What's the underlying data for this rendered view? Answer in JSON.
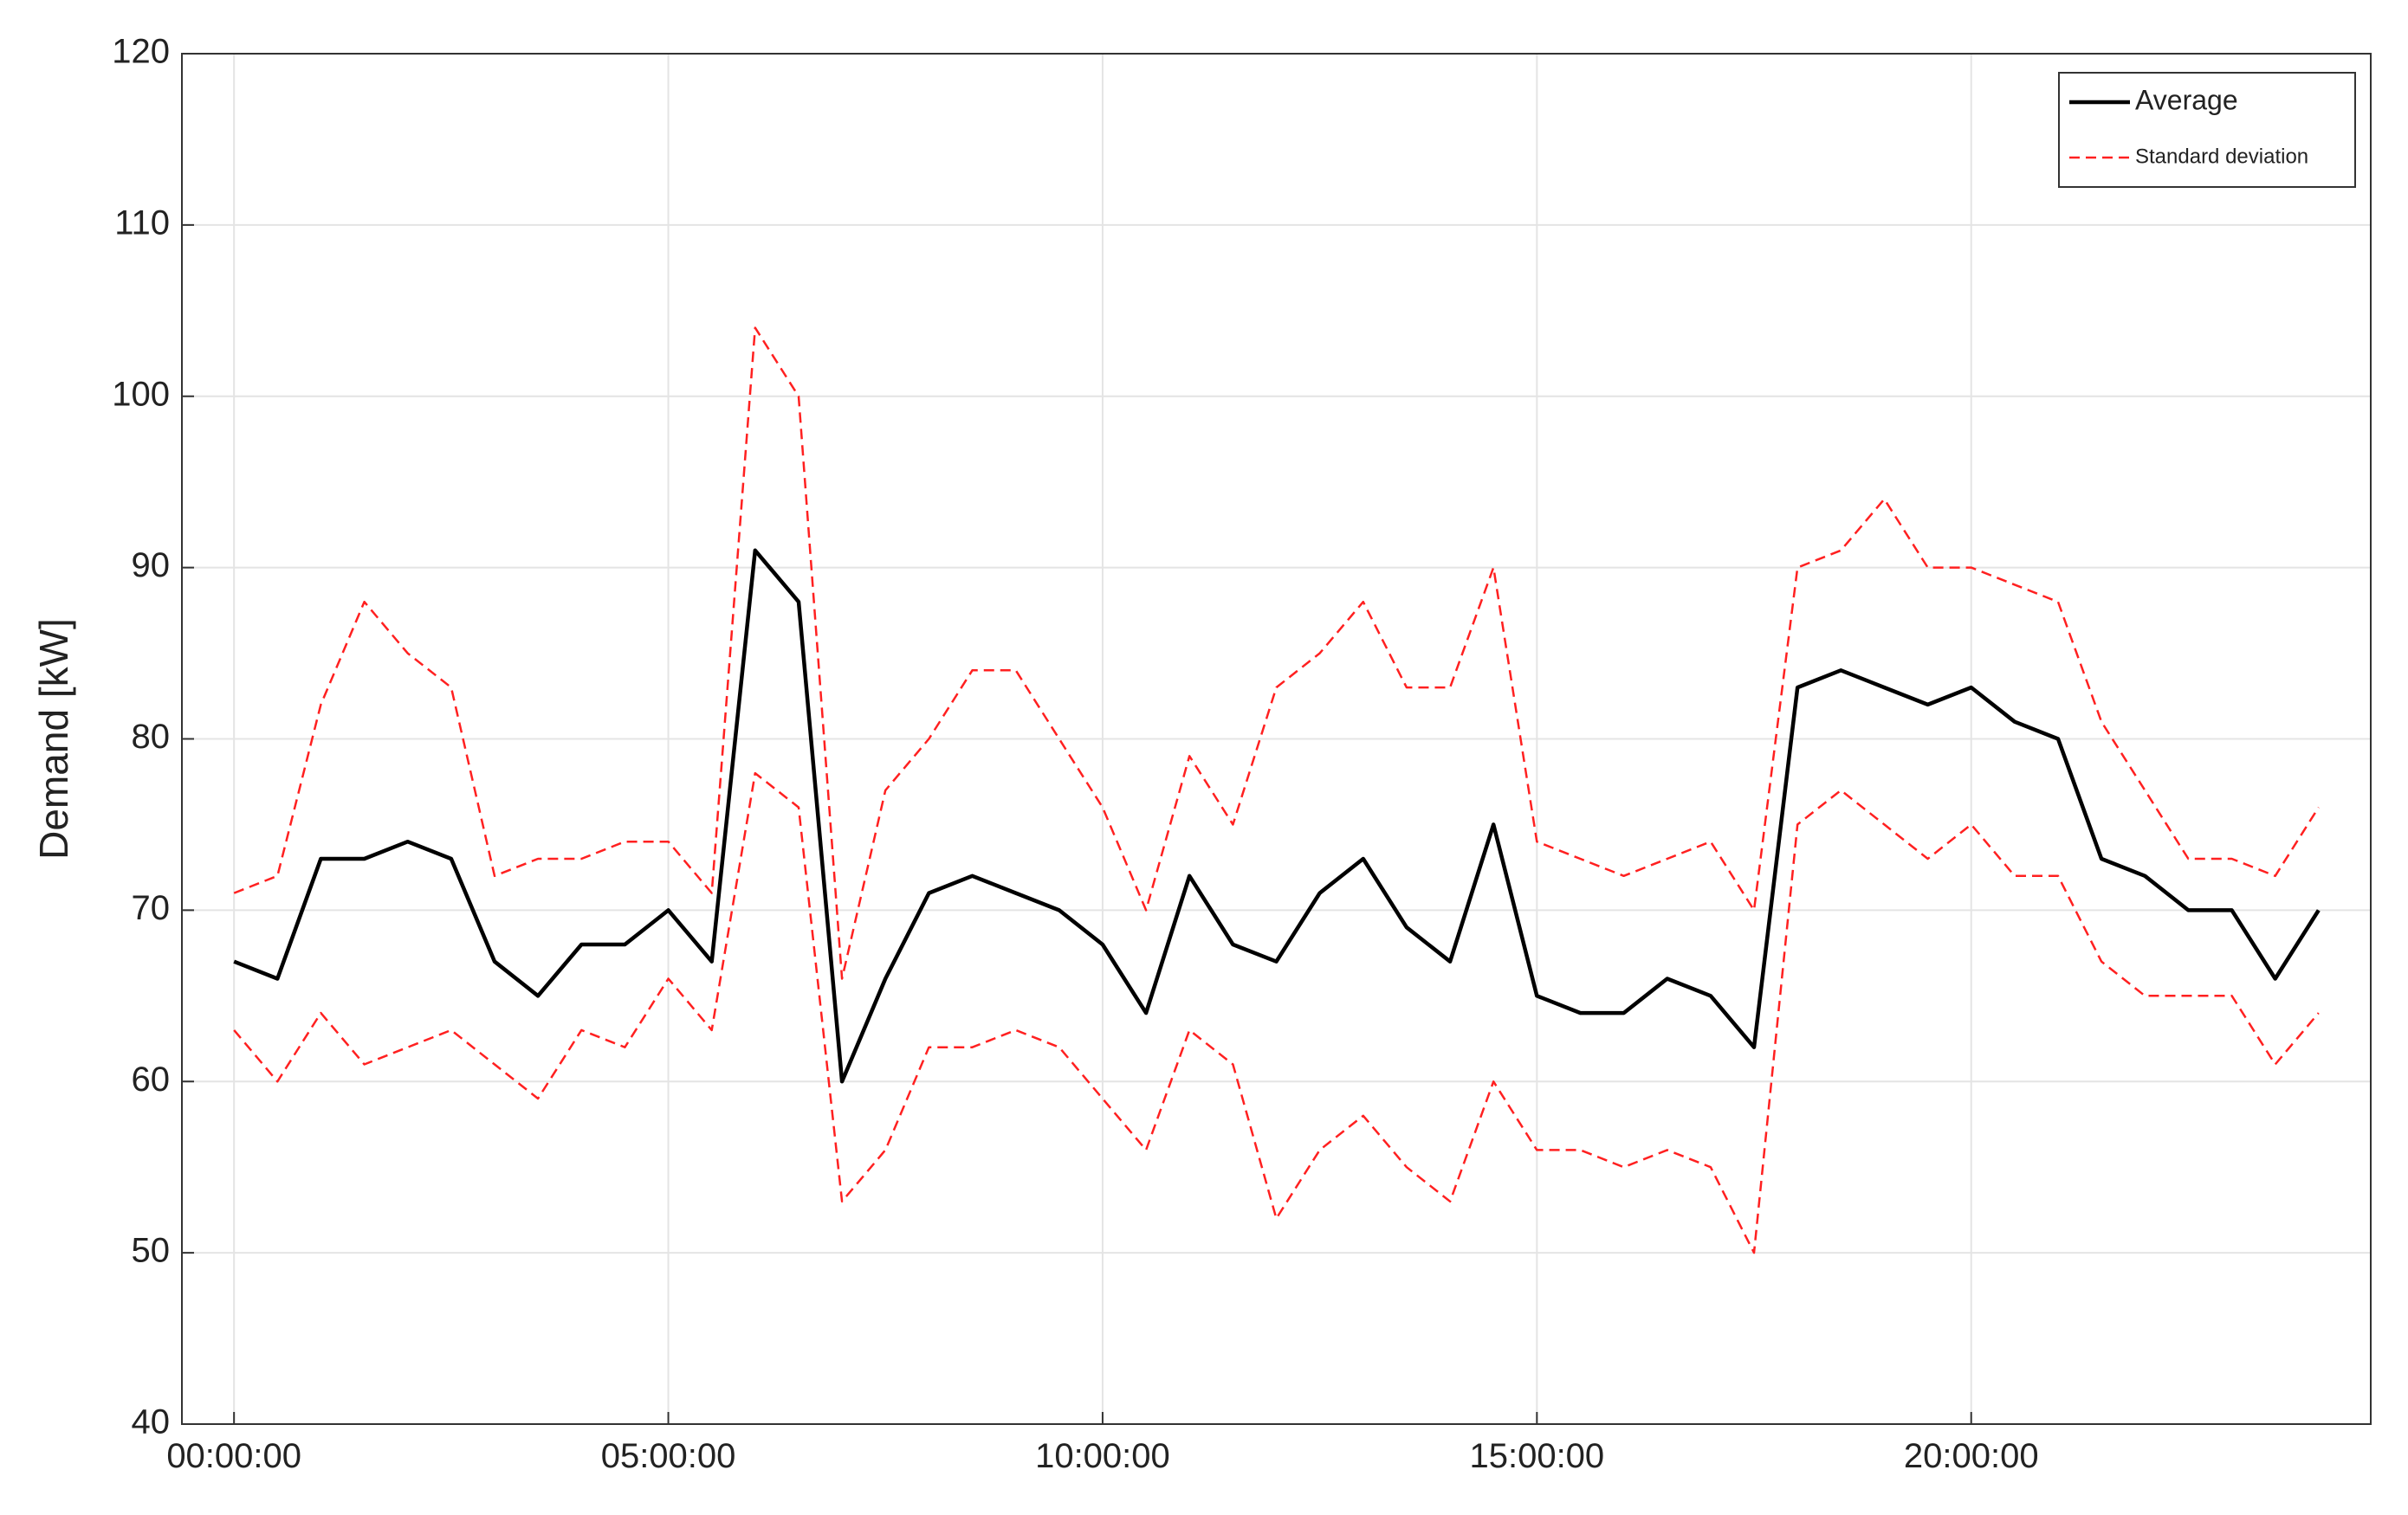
{
  "chart_data": {
    "type": "line",
    "y_label": "Demand [kW]",
    "x": [
      0,
      0.5,
      1,
      1.5,
      2,
      2.5,
      3,
      3.5,
      4,
      4.5,
      5,
      5.5,
      6,
      6.5,
      7,
      7.5,
      8,
      8.5,
      9,
      9.5,
      10,
      10.5,
      11,
      11.5,
      12,
      12.5,
      13,
      13.5,
      14,
      14.5,
      15,
      15.5,
      16,
      16.5,
      17,
      17.5,
      18,
      18.5,
      19,
      19.5,
      20,
      20.5,
      21,
      21.5,
      22,
      22.5,
      23,
      23.5,
      24
    ],
    "series": [
      {
        "name": "Average",
        "color": "#000000",
        "dash": false,
        "values": [
          67,
          66,
          73,
          73,
          74,
          73,
          67,
          65,
          68,
          68,
          70,
          67,
          91,
          88,
          60,
          66,
          71,
          72,
          71,
          70,
          68,
          64,
          72,
          68,
          67,
          71,
          73,
          69,
          67,
          75,
          65,
          64,
          64,
          66,
          65,
          62,
          83,
          84,
          83,
          82,
          83,
          81,
          80,
          73,
          72,
          70,
          70,
          66,
          70
        ]
      },
      {
        "name": "Standard deviation",
        "color": "#ff2020",
        "dash": true,
        "upper": [
          71,
          72,
          82,
          88,
          85,
          83,
          72,
          73,
          73,
          74,
          74,
          71,
          104,
          100,
          66,
          77,
          80,
          84,
          84,
          80,
          76,
          70,
          79,
          75,
          83,
          85,
          88,
          83,
          83,
          90,
          74,
          73,
          72,
          73,
          74,
          70,
          90,
          91,
          94,
          90,
          90,
          89,
          88,
          81,
          77,
          73,
          73,
          72,
          76
        ],
        "lower": [
          63,
          60,
          64,
          61,
          62,
          63,
          61,
          59,
          63,
          62,
          66,
          63,
          78,
          76,
          53,
          56,
          62,
          62,
          63,
          62,
          59,
          56,
          63,
          61,
          52,
          56,
          58,
          55,
          53,
          60,
          56,
          56,
          55,
          56,
          55,
          50,
          75,
          77,
          75,
          73,
          75,
          72,
          72,
          67,
          65,
          65,
          65,
          61,
          64
        ]
      }
    ],
    "xlim": [
      -0.6,
      24.6
    ],
    "ylim": [
      40,
      120
    ],
    "xticks": [
      {
        "value": 0,
        "label": "00:00:00"
      },
      {
        "value": 5,
        "label": "05:00:00"
      },
      {
        "value": 10,
        "label": "10:00:00"
      },
      {
        "value": 15,
        "label": "15:00:00"
      },
      {
        "value": 20,
        "label": "20:00:00"
      }
    ],
    "yticks": [
      40,
      50,
      60,
      70,
      80,
      90,
      100,
      110,
      120
    ],
    "grid": true,
    "legend": "upper right"
  }
}
